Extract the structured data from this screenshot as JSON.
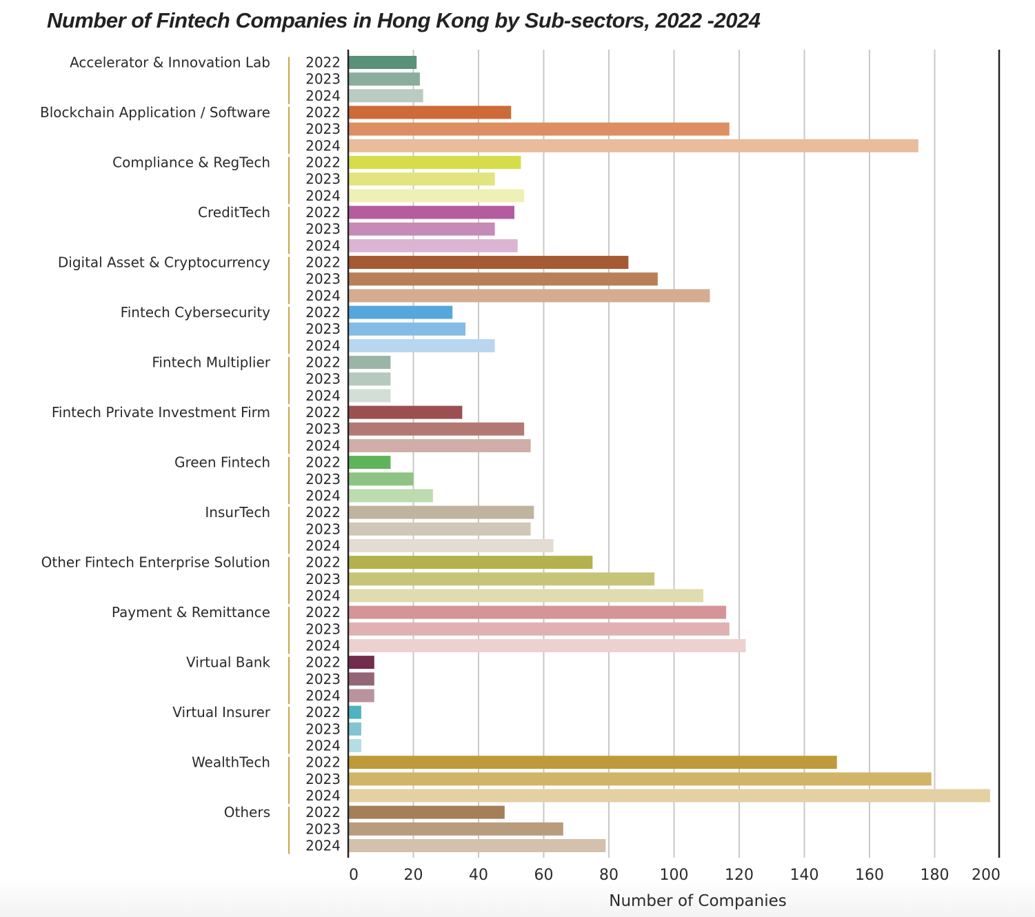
{
  "chart_data": {
    "type": "bar",
    "orientation": "horizontal",
    "title": "Number of Fintech Companies in Hong Kong by Sub-sectors, 2022 -2024",
    "xlabel": "Number of Companies",
    "ylabel": "",
    "xlim": [
      0,
      200
    ],
    "xticks": [
      0,
      20,
      40,
      60,
      80,
      100,
      120,
      140,
      160,
      180,
      200
    ],
    "grid": true,
    "years": [
      "2022",
      "2023",
      "2024"
    ],
    "categories": [
      {
        "name": "Accelerator & Innovation Lab",
        "values": [
          21,
          22,
          23
        ],
        "colors": [
          "#5a9179",
          "#8aae9c",
          "#b9cbc2"
        ]
      },
      {
        "name": "Blockchain Application / Software",
        "values": [
          50,
          117,
          175
        ],
        "colors": [
          "#cd6a38",
          "#dd8f63",
          "#e9bc9c"
        ]
      },
      {
        "name": "Compliance & RegTech",
        "values": [
          53,
          45,
          54
        ],
        "colors": [
          "#d6dd4a",
          "#e2e57f",
          "#eef0b5"
        ]
      },
      {
        "name": "CreditTech",
        "values": [
          51,
          45,
          52
        ],
        "colors": [
          "#b45ca0",
          "#c68ab8",
          "#dbb5d2"
        ]
      },
      {
        "name": "Digital Asset & Cryptocurrency",
        "values": [
          86,
          95,
          111
        ],
        "colors": [
          "#a65a33",
          "#b98058",
          "#d4ad91"
        ]
      },
      {
        "name": "Fintech Cybersecurity",
        "values": [
          32,
          36,
          45
        ],
        "colors": [
          "#56a8dc",
          "#85bce6",
          "#b9d6ef"
        ]
      },
      {
        "name": "Fintech Multiplier",
        "values": [
          13,
          13,
          13
        ],
        "colors": [
          "#9ab5a7",
          "#b6c9be",
          "#d3ded7"
        ]
      },
      {
        "name": "Fintech Private Investment Firm",
        "values": [
          35,
          54,
          56
        ],
        "colors": [
          "#9c4f51",
          "#b27974",
          "#d0ada7"
        ]
      },
      {
        "name": "Green Fintech",
        "values": [
          13,
          20,
          26
        ],
        "colors": [
          "#5fb45a",
          "#8dc483",
          "#bcdcb0"
        ]
      },
      {
        "name": "InsurTech",
        "values": [
          57,
          56,
          63
        ],
        "colors": [
          "#c0b49f",
          "#d0c7b7",
          "#e2dcd2"
        ]
      },
      {
        "name": "Other Fintech Enterprise Solution",
        "values": [
          75,
          94,
          109
        ],
        "colors": [
          "#b3b24d",
          "#c7c479",
          "#dedcb0"
        ]
      },
      {
        "name": "Payment & Remittance",
        "values": [
          116,
          117,
          122
        ],
        "colors": [
          "#d49598",
          "#e0b1b1",
          "#ecd1d0"
        ]
      },
      {
        "name": "Virtual Bank",
        "values": [
          8,
          8,
          8
        ],
        "colors": [
          "#722c4c",
          "#946477",
          "#b9949f"
        ]
      },
      {
        "name": "Virtual Insurer",
        "values": [
          4,
          4,
          4
        ],
        "colors": [
          "#4fb2bf",
          "#80c5cf",
          "#b5dde3"
        ]
      },
      {
        "name": "WealthTech",
        "values": [
          150,
          179,
          197
        ],
        "colors": [
          "#c09a3a",
          "#d2b469",
          "#e4d1a3"
        ]
      },
      {
        "name": "Others",
        "values": [
          48,
          66,
          79
        ],
        "colors": [
          "#a47f5a",
          "#b99b7e",
          "#d3c0ad"
        ]
      }
    ],
    "colors": {
      "gridline": "#c8c8c8",
      "axis": "#222222",
      "group_separator": "#c9a54a"
    }
  }
}
